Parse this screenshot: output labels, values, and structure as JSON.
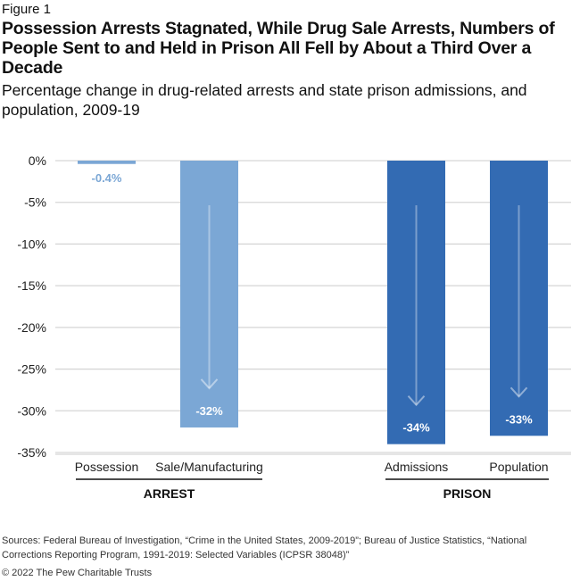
{
  "figure_label": "Figure 1",
  "title": "Possession Arrests Stagnated, While Drug Sale Arrests, Numbers of People Sent to and Held in Prison All Fell by About a Third Over a Decade",
  "subtitle": "Percentage change in drug-related arrests and state prison admissions, and population, 2009-19",
  "source": "Sources: Federal Bureau of Investigation, “Crime in the United States, 2009-2019”; Bureau of Justice Statistics, “National Corrections Reporting Program, 1991-2019: Selected Variables (ICPSR 38048)”",
  "copyright": "© 2022 The Pew Charitable Trusts",
  "chart_data": {
    "type": "bar",
    "categories": [
      "Possession",
      "Sale/Manufacturing",
      "Admissions",
      "Population"
    ],
    "groups": [
      {
        "label": "ARREST",
        "categories": [
          "Possession",
          "Sale/Manufacturing"
        ]
      },
      {
        "label": "PRISON",
        "categories": [
          "Admissions",
          "Population"
        ]
      }
    ],
    "values": [
      -0.4,
      -32,
      -34,
      -33
    ],
    "data_labels": [
      "-0.4%",
      "-32%",
      "-34%",
      "-33%"
    ],
    "colors": [
      "#7BA7D5",
      "#7BA7D5",
      "#336BB3",
      "#336BB3"
    ],
    "ylim": [
      -35,
      0
    ],
    "yticks": [
      "0%",
      "-5%",
      "-10%",
      "-15%",
      "-20%",
      "-25%",
      "-30%",
      "-35%"
    ],
    "grid": true
  }
}
